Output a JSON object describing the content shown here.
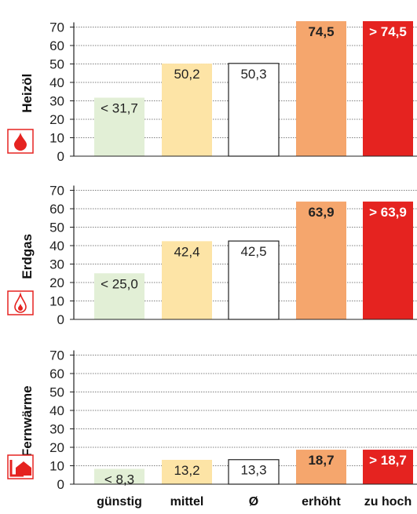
{
  "chart_data": [
    {
      "type": "bar",
      "ylabel": "Heizöl",
      "icon": "oil-drop-icon",
      "categories": [
        "günstig",
        "mittel",
        "Ø",
        "erhöht",
        "zu hoch"
      ],
      "values": [
        31.7,
        50.2,
        50.3,
        74.5,
        74.5
      ],
      "data_labels": [
        "< 31,7",
        "50,2",
        "50,3",
        "74,5",
        "> 74,5"
      ],
      "yticks": [
        "0",
        "10",
        "20",
        "30",
        "40",
        "50",
        "60",
        "70"
      ],
      "ylim": [
        0,
        70
      ],
      "grid": true
    },
    {
      "type": "bar",
      "ylabel": "Erdgas",
      "icon": "gas-flame-icon",
      "categories": [
        "günstig",
        "mittel",
        "Ø",
        "erhöht",
        "zu hoch"
      ],
      "values": [
        25.0,
        42.4,
        42.5,
        63.9,
        63.9
      ],
      "data_labels": [
        "< 25,0",
        "42,4",
        "42,5",
        "63,9",
        "> 63,9"
      ],
      "yticks": [
        "0",
        "10",
        "20",
        "30",
        "40",
        "50",
        "60",
        "70"
      ],
      "ylim": [
        0,
        70
      ],
      "grid": true
    },
    {
      "type": "bar",
      "ylabel": "Fernwärme",
      "icon": "district-heating-icon",
      "categories": [
        "günstig",
        "mittel",
        "Ø",
        "erhöht",
        "zu hoch"
      ],
      "values": [
        8.3,
        13.2,
        13.3,
        18.7,
        18.7
      ],
      "data_labels": [
        "< 8,3",
        "13,2",
        "13,3",
        "18,7",
        "> 18,7"
      ],
      "yticks": [
        "0",
        "10",
        "20",
        "30",
        "40",
        "50",
        "60",
        "70"
      ],
      "ylim": [
        0,
        70
      ],
      "grid": true
    }
  ],
  "colors": {
    "günstig": "#e2efd6",
    "mittel": "#fde4a6",
    "avg": "#ffffff",
    "erhöht": "#f5a66d",
    "zu_hoch": "#e52320",
    "icon_bg": "#e52320"
  },
  "x_labels": [
    "günstig",
    "mittel",
    "Ø",
    "erhöht",
    "zu hoch"
  ]
}
